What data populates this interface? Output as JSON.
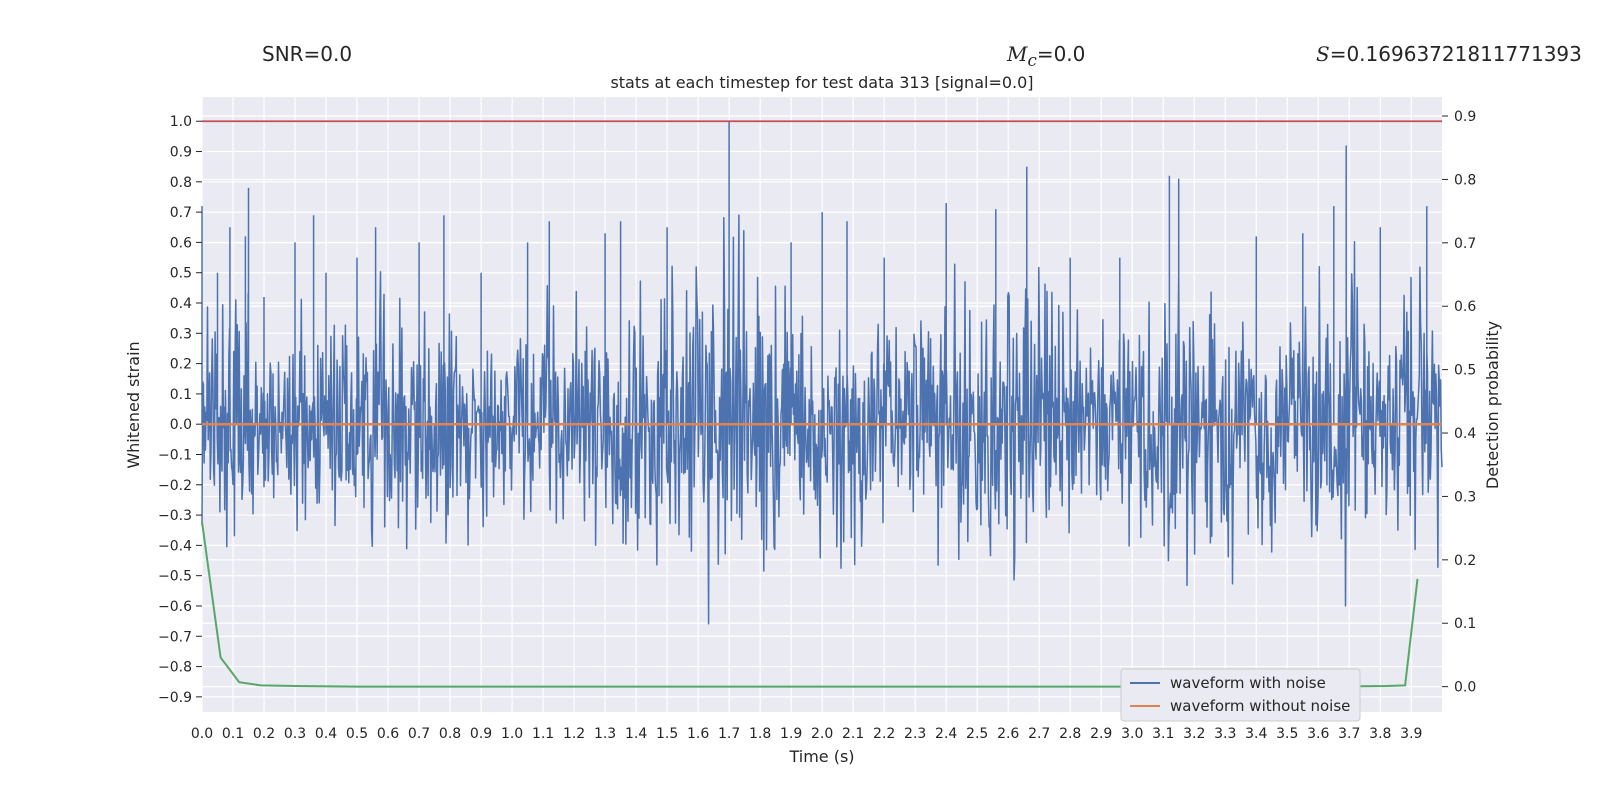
{
  "header": {
    "snr": "SNR=0.0",
    "mc_symbol": "M",
    "mc_subscript": "c",
    "mc_value": "=0.0",
    "s_symbol": "S",
    "s_value": "=0.16963721811771393"
  },
  "chart_data": {
    "type": "line",
    "title": "stats at each timestep for test data 313 [signal=0.0]",
    "xlabel": "Time (s)",
    "ylabel": "Whitened strain",
    "y2label": "Detection probability",
    "xlim": [
      0.0,
      3.999
    ],
    "ylim": [
      -0.95,
      1.08
    ],
    "y2lim": [
      -0.04,
      0.93
    ],
    "xticks": [
      "0.0",
      "0.1",
      "0.2",
      "0.3",
      "0.4",
      "0.5",
      "0.6",
      "0.7",
      "0.8",
      "0.9",
      "1.0",
      "1.1",
      "1.2",
      "1.3",
      "1.4",
      "1.5",
      "1.6",
      "1.7",
      "1.8",
      "1.9",
      "2.0",
      "2.1",
      "2.2",
      "2.3",
      "2.4",
      "2.5",
      "2.6",
      "2.7",
      "2.8",
      "2.9",
      "3.0",
      "3.1",
      "3.2",
      "3.3",
      "3.4",
      "3.5",
      "3.6",
      "3.7",
      "3.8",
      "3.9"
    ],
    "yticks": [
      "1.0",
      "0.9",
      "0.8",
      "0.7",
      "0.6",
      "0.5",
      "0.4",
      "0.3",
      "0.2",
      "0.1",
      "0.0",
      "−0.1",
      "−0.2",
      "−0.3",
      "−0.4",
      "−0.5",
      "−0.6",
      "−0.7",
      "−0.8",
      "−0.9"
    ],
    "y2ticks": [
      "0.9",
      "0.8",
      "0.7",
      "0.6",
      "0.5",
      "0.4",
      "0.3",
      "0.2",
      "0.1",
      "0.0"
    ],
    "grid": true,
    "legend": {
      "placement": "lower-right",
      "entries": [
        "waveform with noise",
        "waveform without noise"
      ]
    },
    "threshold_line": {
      "y": 1.0,
      "color": "#c44e52"
    },
    "series": [
      {
        "name": "waveform with noise",
        "axis": "left",
        "color": "#4c72b0",
        "note_envelope_max_abs": [
          [
            0.0,
            0.72
          ],
          [
            0.05,
            0.5
          ],
          [
            0.09,
            0.65
          ],
          [
            0.14,
            0.62
          ],
          [
            0.15,
            0.78
          ],
          [
            0.2,
            0.42
          ],
          [
            0.3,
            0.6
          ],
          [
            0.36,
            0.69
          ],
          [
            0.4,
            0.5
          ],
          [
            0.5,
            0.55
          ],
          [
            0.56,
            0.65
          ],
          [
            0.7,
            0.6
          ],
          [
            0.78,
            0.69
          ],
          [
            0.9,
            0.5
          ],
          [
            1.05,
            0.6
          ],
          [
            1.12,
            0.67
          ],
          [
            1.3,
            0.63
          ],
          [
            1.35,
            0.67
          ],
          [
            1.5,
            0.65
          ],
          [
            1.7,
            1.0
          ],
          [
            1.9,
            0.6
          ],
          [
            2.0,
            0.7
          ],
          [
            2.08,
            0.67
          ],
          [
            2.2,
            0.55
          ],
          [
            2.4,
            0.73
          ],
          [
            2.56,
            0.71
          ],
          [
            2.66,
            0.85
          ],
          [
            2.8,
            0.55
          ],
          [
            2.96,
            0.55
          ],
          [
            3.12,
            0.82
          ],
          [
            3.15,
            0.81
          ],
          [
            3.4,
            0.62
          ],
          [
            3.55,
            0.63
          ],
          [
            3.65,
            0.72
          ],
          [
            3.69,
            0.92
          ],
          [
            3.8,
            0.65
          ],
          [
            3.95,
            0.72
          ]
        ]
      },
      {
        "name": "waveform without noise",
        "axis": "left",
        "color": "#dd8452",
        "x": [
          0.0,
          3.999
        ],
        "y": [
          0.0,
          0.0
        ]
      },
      {
        "axis": "right",
        "color": "#55a868",
        "x": [
          0.0,
          0.06,
          0.12,
          0.19,
          0.3,
          0.5,
          1.0,
          2.0,
          3.0,
          3.6,
          3.82,
          3.88,
          3.92
        ],
        "y": [
          0.26,
          0.046,
          0.007,
          0.002,
          0.001,
          0.0,
          0.0,
          0.0,
          0.0,
          0.0,
          0.001,
          0.002,
          0.17
        ]
      }
    ]
  }
}
